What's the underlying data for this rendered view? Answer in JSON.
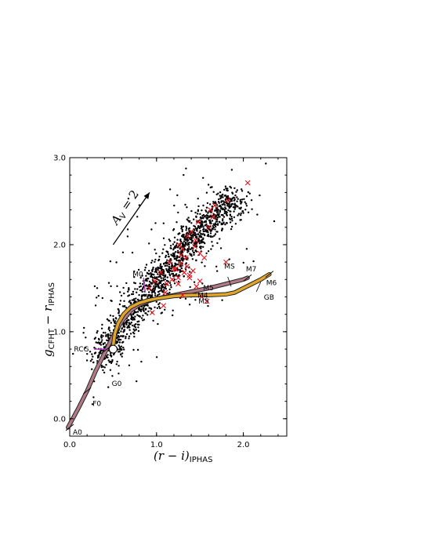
{
  "chart_data": {
    "type": "scatter",
    "title": "",
    "xlabel": "(r − i)",
    "xlabel_sub": "IPHAS",
    "ylabel": "g",
    "ylabel_sub_cfht": "CFHT",
    "ylabel_minus": " − r",
    "ylabel_sub_iphas": "IPHAS",
    "xlim": [
      0.0,
      2.5
    ],
    "ylim": [
      -0.2,
      3.0
    ],
    "x_ticks": [
      0.0,
      1.0,
      2.0
    ],
    "x_tick_labels": [
      "0.0",
      "1.0",
      "2.0"
    ],
    "y_ticks": [
      0.0,
      1.0,
      2.0,
      3.0
    ],
    "y_tick_labels": [
      "0.0",
      "1.0",
      "2.0",
      "3.0"
    ],
    "grid": false,
    "colors": {
      "stars": "#000000",
      "crosses": "#e8101a",
      "main_sequence_track": "#b07a86",
      "giant_track": "#e0a62a",
      "track_edge": "#222222",
      "magenta_marks": "#b040c0"
    },
    "main_sequence_track": {
      "name": "MS",
      "x": [
        -0.02,
        0.1,
        0.2,
        0.3,
        0.4,
        0.5,
        0.6,
        0.7,
        0.8,
        0.9,
        1.0,
        1.2,
        1.4,
        1.6,
        1.8,
        2.0,
        2.05
      ],
      "y": [
        -0.1,
        0.12,
        0.32,
        0.55,
        0.75,
        0.95,
        1.12,
        1.24,
        1.31,
        1.35,
        1.38,
        1.42,
        1.46,
        1.5,
        1.55,
        1.6,
        1.62
      ]
    },
    "giant_track": {
      "name": "GB",
      "x": [
        0.5,
        0.52,
        0.56,
        0.62,
        0.7,
        0.8,
        0.9,
        1.0,
        1.2,
        1.4,
        1.6,
        1.8,
        1.9,
        2.0,
        2.1,
        2.2,
        2.3
      ],
      "y": [
        0.84,
        0.98,
        1.1,
        1.2,
        1.28,
        1.33,
        1.36,
        1.38,
        1.41,
        1.42,
        1.42,
        1.43,
        1.45,
        1.5,
        1.55,
        1.6,
        1.66
      ]
    },
    "spectral_type_labels": [
      {
        "label": "A0",
        "x": 0.0,
        "y": -0.1
      },
      {
        "label": "F0",
        "x": 0.2,
        "y": 0.2
      },
      {
        "label": "G0",
        "x": 0.43,
        "y": 0.45
      },
      {
        "label": "RCG",
        "x": 0.5,
        "y": 0.8
      },
      {
        "label": "M0",
        "x": 0.85,
        "y": 1.6
      },
      {
        "label": "M4",
        "x": 1.4,
        "y": 1.5
      },
      {
        "label": "M5",
        "x": 1.7,
        "y": 1.55
      },
      {
        "label": "M5",
        "x": 1.5,
        "y": 1.43
      },
      {
        "label": "M7",
        "x": 2.03,
        "y": 1.64
      },
      {
        "label": "M6",
        "x": 2.3,
        "y": 1.66
      },
      {
        "label": "MS",
        "x": 1.78,
        "y": 1.6
      },
      {
        "label": "GB",
        "x": 2.2,
        "y": 1.55
      }
    ],
    "reddening_vector": {
      "label": "A_V = 2",
      "label_main": "A",
      "label_sub": "V",
      "label_rest": " = 2",
      "x0": 0.5,
      "y0": 2.0,
      "x1": 0.92,
      "y1": 2.6
    },
    "red_crosses": {
      "x": [
        2.05,
        1.82,
        1.67,
        1.65,
        1.48,
        1.6,
        1.4,
        1.36,
        1.45,
        1.26,
        1.3,
        1.5,
        1.55,
        1.8,
        1.28,
        1.35,
        1.2,
        1.42,
        1.32,
        1.38,
        1.25,
        1.18,
        1.12,
        1.5,
        1.46,
        1.62,
        1.28,
        1.15,
        1.44,
        1.34,
        1.22,
        1.05,
        0.98,
        0.92,
        1.1,
        1.3,
        1.25,
        1.38,
        1.52,
        1.58,
        1.08,
        0.95
      ],
      "y": [
        2.71,
        2.51,
        2.45,
        2.32,
        2.26,
        2.2,
        2.15,
        2.1,
        2.05,
        2.0,
        1.95,
        1.9,
        1.85,
        1.8,
        1.78,
        1.75,
        1.72,
        1.7,
        1.68,
        1.65,
        1.62,
        1.6,
        1.55,
        1.58,
        1.52,
        2.4,
        1.88,
        1.8,
        1.98,
        1.85,
        1.72,
        1.68,
        1.58,
        1.5,
        1.45,
        1.42,
        1.55,
        1.62,
        1.4,
        1.35,
        1.3,
        1.22
      ]
    },
    "black_point_seed": 12345,
    "black_point_count": 1600,
    "black_point_locus": {
      "x": [
        0.35,
        0.5,
        0.7,
        0.9,
        1.1,
        1.3,
        1.5,
        1.7,
        1.9
      ],
      "y": [
        0.65,
        0.88,
        1.18,
        1.45,
        1.7,
        1.95,
        2.15,
        2.35,
        2.55
      ]
    }
  }
}
